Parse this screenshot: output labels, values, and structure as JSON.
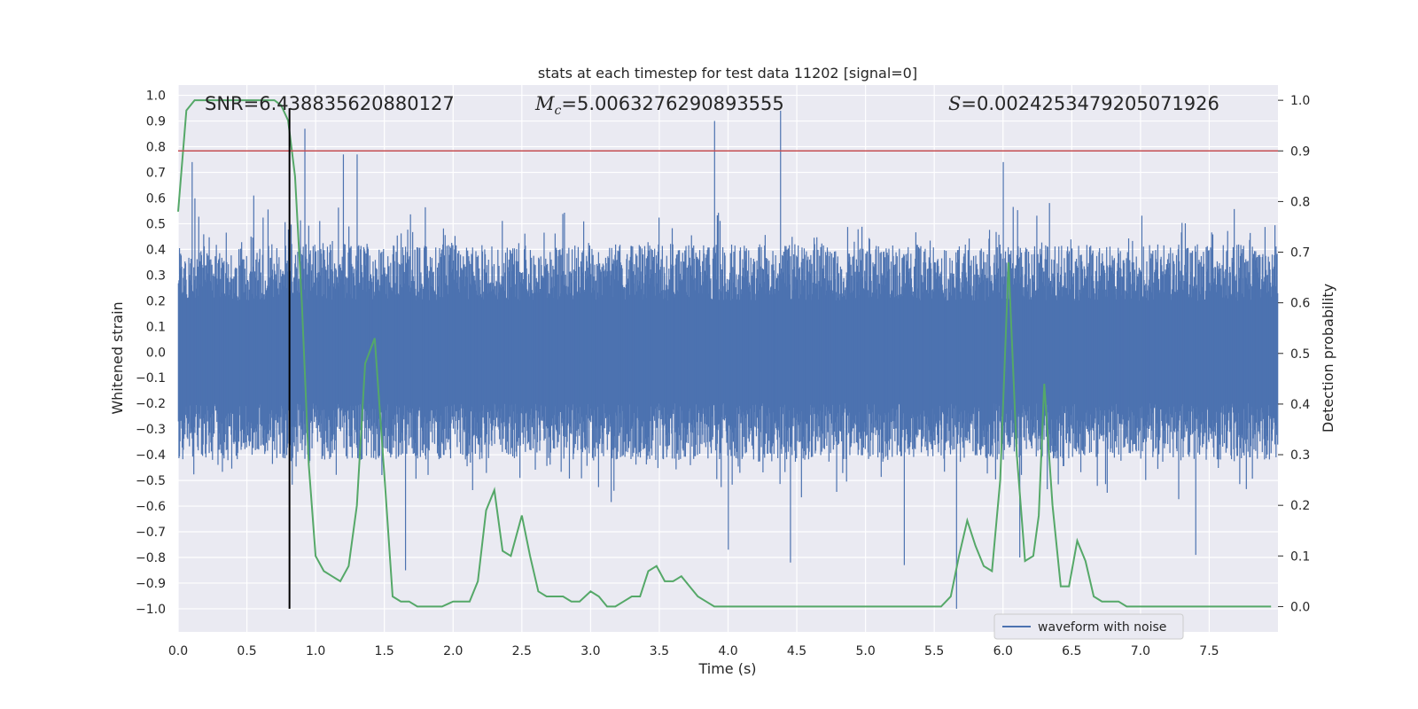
{
  "chart_data": {
    "type": "line",
    "title": "stats at each timestep for test data 11202 [signal=0]",
    "xlabel": "Time (s)",
    "ylabel_left": "Whitened strain",
    "ylabel_right": "Detection probability",
    "xlim": [
      0.0,
      8.0
    ],
    "ylim_left": [
      -1.09,
      1.04
    ],
    "ylim_right": [
      -0.05,
      1.03
    ],
    "x_ticks": [
      0.0,
      0.5,
      1.0,
      1.5,
      2.0,
      2.5,
      3.0,
      3.5,
      4.0,
      4.5,
      5.0,
      5.5,
      6.0,
      6.5,
      7.0,
      7.5
    ],
    "x_tick_labels": [
      "0.0",
      "0.5",
      "1.0",
      "1.5",
      "2.0",
      "2.5",
      "3.0",
      "3.5",
      "4.0",
      "4.5",
      "5.0",
      "5.5",
      "6.0",
      "6.5",
      "7.0",
      "7.5"
    ],
    "y_left_ticks": [
      1.0,
      0.9,
      0.8,
      0.7,
      0.6,
      0.5,
      0.4,
      0.3,
      0.2,
      0.1,
      0.0,
      -0.1,
      -0.2,
      -0.3,
      -0.4,
      -0.5,
      -0.6,
      -0.7,
      -0.8,
      -0.9,
      -1.0
    ],
    "y_left_tick_labels": [
      "1.0",
      "0.9",
      "0.8",
      "0.7",
      "0.6",
      "0.5",
      "0.4",
      "0.3",
      "0.2",
      "0.1",
      "0.0",
      "−0.1",
      "−0.2",
      "−0.3",
      "−0.4",
      "−0.5",
      "−0.6",
      "−0.7",
      "−0.8",
      "−0.9",
      "−1.0"
    ],
    "y_right_ticks": [
      1.0,
      0.9,
      0.8,
      0.7,
      0.6,
      0.5,
      0.4,
      0.3,
      0.2,
      0.1,
      0.0
    ],
    "y_right_tick_labels": [
      "1.0",
      "0.9",
      "0.8",
      "0.7",
      "0.6",
      "0.5",
      "0.4",
      "0.3",
      "0.2",
      "0.1",
      "0.0"
    ],
    "annotations": {
      "snr": "SNR=6.438835620880127",
      "mc_symbol": "M",
      "mc_sub": "c",
      "mc_value": "=5.0063276290893555",
      "s_symbol": "S",
      "s_value": "=0.0024253479205071926"
    },
    "threshold_line": {
      "axis": "right",
      "y": 0.9,
      "color": "#c44e52"
    },
    "marker_line": {
      "x": 0.81,
      "y_range_left": [
        -1.0,
        0.95
      ],
      "color": "#000000"
    },
    "series": [
      {
        "name": "waveform with noise",
        "axis": "left",
        "color": "#4c72b0",
        "kind": "noise-strain",
        "duration_s": 8.0,
        "sample_count": 2000,
        "typical_amplitude": 0.45,
        "notable_peaks": [
          {
            "x": 0.1,
            "y": 0.74
          },
          {
            "x": 0.92,
            "y": 0.87
          },
          {
            "x": 1.2,
            "y": 0.77
          },
          {
            "x": 1.3,
            "y": 0.77
          },
          {
            "x": 3.9,
            "y": 0.9
          },
          {
            "x": 4.38,
            "y": 0.94
          },
          {
            "x": 6.0,
            "y": 0.74
          },
          {
            "x": 1.65,
            "y": -0.85
          },
          {
            "x": 4.0,
            "y": -0.77
          },
          {
            "x": 4.45,
            "y": -0.82
          },
          {
            "x": 5.28,
            "y": -0.83
          },
          {
            "x": 5.66,
            "y": -1.0
          },
          {
            "x": 6.12,
            "y": -0.8
          },
          {
            "x": 7.4,
            "y": -0.79
          }
        ]
      },
      {
        "name": "detection probability",
        "axis": "right",
        "color": "#55a868",
        "x": [
          0.0,
          0.06,
          0.12,
          0.2,
          0.3,
          0.4,
          0.5,
          0.6,
          0.7,
          0.75,
          0.8,
          0.85,
          0.9,
          0.95,
          1.0,
          1.06,
          1.12,
          1.18,
          1.24,
          1.3,
          1.36,
          1.43,
          1.5,
          1.56,
          1.62,
          1.68,
          1.74,
          1.8,
          1.86,
          1.92,
          2.0,
          2.06,
          2.12,
          2.18,
          2.24,
          2.3,
          2.36,
          2.42,
          2.5,
          2.56,
          2.62,
          2.68,
          2.74,
          2.8,
          2.86,
          2.92,
          3.0,
          3.06,
          3.12,
          3.18,
          3.24,
          3.3,
          3.36,
          3.42,
          3.48,
          3.54,
          3.6,
          3.66,
          3.72,
          3.78,
          3.84,
          3.9,
          4.0,
          4.2,
          4.4,
          4.6,
          4.75,
          4.9,
          5.0,
          5.2,
          5.4,
          5.55,
          5.62,
          5.68,
          5.74,
          5.8,
          5.86,
          5.92,
          5.98,
          6.04,
          6.1,
          6.16,
          6.22,
          6.26,
          6.3,
          6.36,
          6.42,
          6.48,
          6.54,
          6.6,
          6.66,
          6.72,
          6.78,
          6.84,
          6.9,
          6.96,
          7.02,
          7.1,
          7.3,
          7.5,
          7.7,
          7.95
        ],
        "y": [
          0.78,
          0.98,
          1.0,
          1.0,
          1.0,
          1.0,
          1.0,
          1.0,
          1.0,
          0.99,
          0.96,
          0.85,
          0.6,
          0.28,
          0.1,
          0.07,
          0.06,
          0.05,
          0.08,
          0.2,
          0.48,
          0.53,
          0.26,
          0.02,
          0.01,
          0.01,
          0.0,
          0.0,
          0.0,
          0.0,
          0.01,
          0.01,
          0.01,
          0.05,
          0.19,
          0.23,
          0.11,
          0.1,
          0.18,
          0.1,
          0.03,
          0.02,
          0.02,
          0.02,
          0.01,
          0.01,
          0.03,
          0.02,
          0.0,
          0.0,
          0.01,
          0.02,
          0.02,
          0.07,
          0.08,
          0.05,
          0.05,
          0.06,
          0.04,
          0.02,
          0.01,
          0.0,
          0.0,
          0.0,
          0.0,
          0.0,
          0.0,
          0.0,
          0.0,
          0.0,
          0.0,
          0.0,
          0.02,
          0.1,
          0.17,
          0.12,
          0.08,
          0.07,
          0.25,
          0.68,
          0.3,
          0.09,
          0.1,
          0.18,
          0.44,
          0.2,
          0.04,
          0.04,
          0.13,
          0.09,
          0.02,
          0.01,
          0.01,
          0.01,
          0.0,
          0.0,
          0.0,
          0.0,
          0.0,
          0.0,
          0.0,
          0.0
        ]
      }
    ],
    "legend": {
      "placement": "lower-center-right",
      "entries": [
        "waveform with noise"
      ]
    }
  }
}
